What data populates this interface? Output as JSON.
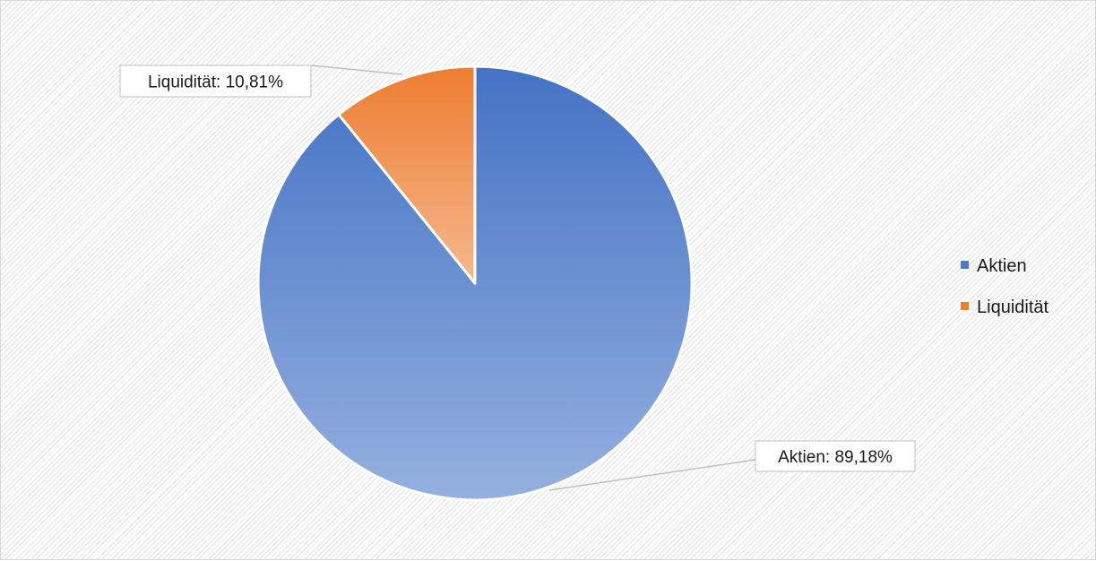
{
  "chart_data": {
    "type": "pie",
    "slices": [
      {
        "name": "Aktien",
        "value": 89.18,
        "color": "#4a7bc8",
        "label": "Aktien: 89,18%"
      },
      {
        "name": "Liquidität",
        "value": 10.81,
        "color": "#ed7d31",
        "label": "Liquidität: 10,81%"
      }
    ],
    "start_angle_deg": 0,
    "direction": "clockwise",
    "legend": {
      "position": "right",
      "entries": [
        "Aktien",
        "Liquidität"
      ]
    },
    "title": ""
  }
}
